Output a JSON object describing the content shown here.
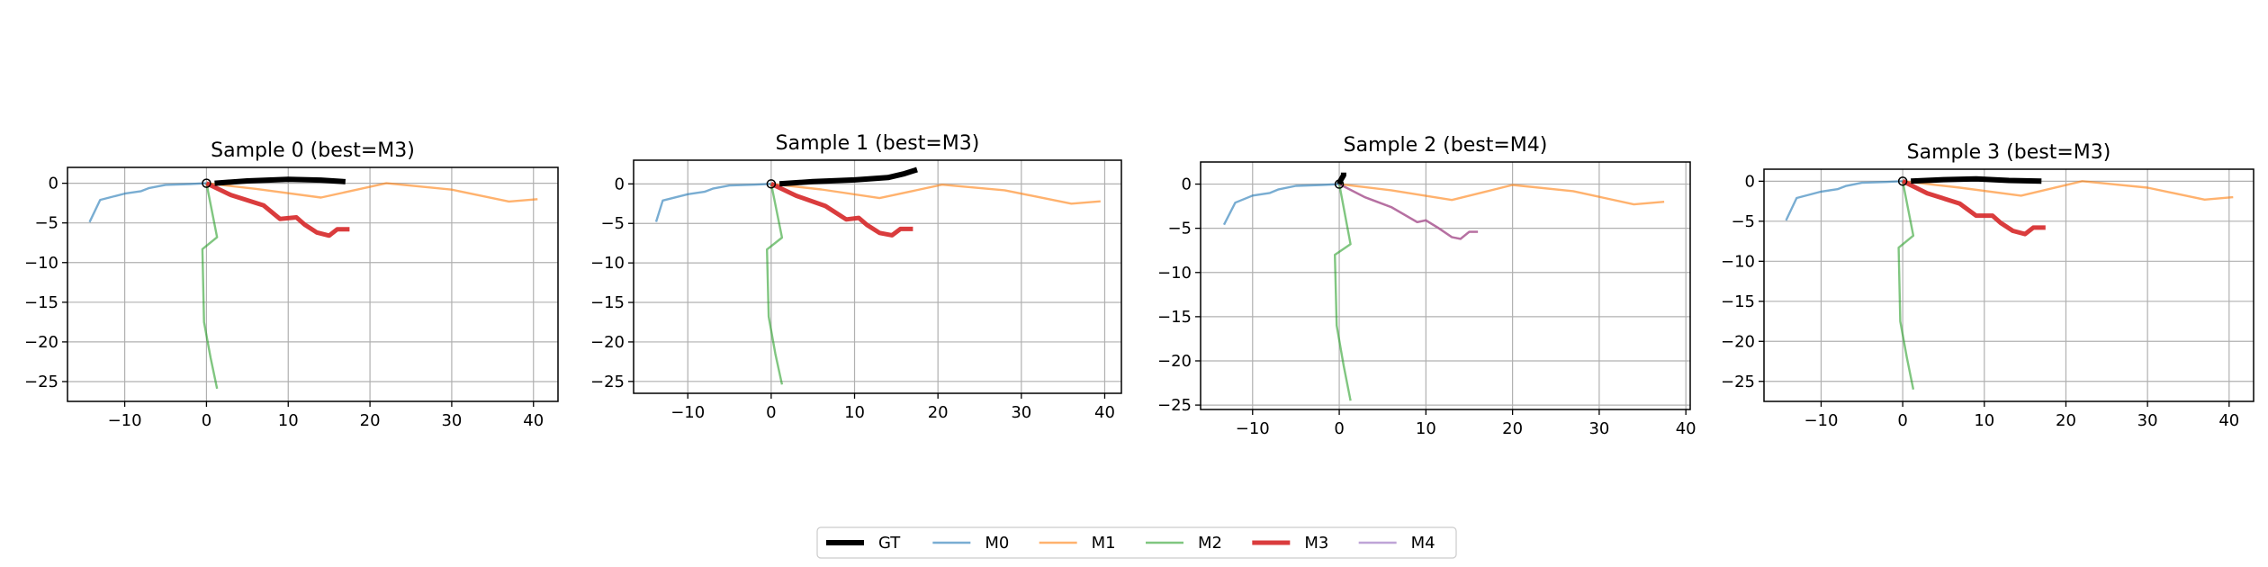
{
  "legend": {
    "entries": [
      {
        "name": "GT",
        "color": "#000000",
        "width": 6.0,
        "alpha": 1.0
      },
      {
        "name": "M0",
        "color": "#1f77b4",
        "width": 2.4,
        "alpha": 0.6
      },
      {
        "name": "M1",
        "color": "#ff7f0e",
        "width": 2.4,
        "alpha": 0.6
      },
      {
        "name": "M2",
        "color": "#2ca02c",
        "width": 2.4,
        "alpha": 0.6
      },
      {
        "name": "M3",
        "color": "#d62728",
        "width": 5.0,
        "alpha": 0.9
      },
      {
        "name": "M4",
        "color": "#9467bd",
        "width": 2.4,
        "alpha": 0.6
      }
    ]
  },
  "chart_data": [
    {
      "type": "line",
      "title": "Sample 0 (best=M3)",
      "xlabel": "",
      "ylabel": "",
      "xlim": [
        -17,
        43
      ],
      "ylim": [
        -27.5,
        2
      ],
      "xticks": [
        -10,
        0,
        10,
        20,
        30,
        40
      ],
      "yticks": [
        0,
        -5,
        -10,
        -15,
        -20,
        -25
      ],
      "grid": true,
      "best": "M3",
      "series": [
        {
          "name": "GT",
          "x": [
            1,
            5,
            10,
            14,
            17
          ],
          "y": [
            0,
            0.3,
            0.5,
            0.4,
            0.2
          ]
        },
        {
          "name": "M0",
          "x": [
            0,
            -2,
            -5,
            -7,
            -8,
            -10,
            -13,
            -14.3
          ],
          "y": [
            0,
            -0.1,
            -0.2,
            -0.6,
            -1.0,
            -1.3,
            -2.1,
            -4.9
          ]
        },
        {
          "name": "M1",
          "x": [
            0,
            6,
            14,
            22,
            30,
            37,
            40.5
          ],
          "y": [
            0,
            -0.7,
            -1.8,
            0,
            -0.8,
            -2.3,
            -2.0
          ]
        },
        {
          "name": "M2",
          "x": [
            0,
            1.3,
            -0.5,
            -0.3,
            0.5,
            1.3
          ],
          "y": [
            0,
            -6.8,
            -8.3,
            -17.5,
            -22,
            -25.9
          ]
        },
        {
          "name": "M3",
          "x": [
            0,
            3,
            7,
            9,
            11,
            12,
            13.5,
            15,
            16,
            17.5
          ],
          "y": [
            0,
            -1.5,
            -2.8,
            -4.5,
            -4.3,
            -5.2,
            -6.2,
            -6.6,
            -5.8,
            -5.8
          ]
        },
        {
          "name": "M4",
          "x": [
            0,
            3,
            7,
            9,
            11,
            12,
            13.5,
            15,
            16,
            17.5
          ],
          "y": [
            0,
            -1.5,
            -2.8,
            -4.5,
            -4.3,
            -5.2,
            -6.2,
            -6.6,
            -5.8,
            -5.8
          ]
        }
      ]
    },
    {
      "type": "line",
      "title": "Sample 1 (best=M3)",
      "xlabel": "",
      "ylabel": "",
      "xlim": [
        -16.5,
        42
      ],
      "ylim": [
        -26.5,
        3
      ],
      "xticks": [
        -10,
        0,
        10,
        20,
        30,
        40
      ],
      "yticks": [
        0,
        -5,
        -10,
        -15,
        -20,
        -25
      ],
      "grid": true,
      "best": "M3",
      "series": [
        {
          "name": "GT",
          "x": [
            1,
            5,
            10,
            14,
            16,
            17.5
          ],
          "y": [
            0,
            0.3,
            0.5,
            0.8,
            1.3,
            1.8
          ]
        },
        {
          "name": "M0",
          "x": [
            0,
            -2,
            -5,
            -7,
            -8,
            -10,
            -13,
            -13.8
          ],
          "y": [
            0,
            -0.1,
            -0.2,
            -0.6,
            -1.0,
            -1.3,
            -2.1,
            -4.8
          ]
        },
        {
          "name": "M1",
          "x": [
            0,
            6,
            13,
            20.5,
            28,
            36,
            39.5
          ],
          "y": [
            0,
            -0.7,
            -1.8,
            -0.1,
            -0.8,
            -2.5,
            -2.2
          ]
        },
        {
          "name": "M2",
          "x": [
            0,
            1.3,
            -0.5,
            -0.3,
            0.5,
            1.3
          ],
          "y": [
            0,
            -6.8,
            -8.3,
            -16.8,
            -21.5,
            -25.4
          ]
        },
        {
          "name": "M3",
          "x": [
            0,
            3,
            6.5,
            9,
            10.5,
            11.5,
            13,
            14.5,
            15.5,
            17
          ],
          "y": [
            0,
            -1.5,
            -2.8,
            -4.5,
            -4.3,
            -5.2,
            -6.2,
            -6.5,
            -5.7,
            -5.7
          ]
        },
        {
          "name": "M4",
          "x": [
            0,
            3,
            6.5,
            9,
            10.5,
            11.5,
            13,
            14.5,
            15.5,
            17
          ],
          "y": [
            0,
            -1.5,
            -2.8,
            -4.5,
            -4.3,
            -5.2,
            -6.2,
            -6.5,
            -5.7,
            -5.7
          ]
        }
      ]
    },
    {
      "type": "line",
      "title": "Sample 2 (best=M4)",
      "xlabel": "",
      "ylabel": "",
      "xlim": [
        -16,
        40.5
      ],
      "ylim": [
        -25.5,
        2.5
      ],
      "xticks": [
        -10,
        0,
        10,
        20,
        30,
        40
      ],
      "yticks": [
        0,
        -5,
        -10,
        -15,
        -20,
        -25
      ],
      "grid": true,
      "best": "M4",
      "series": [
        {
          "name": "GT",
          "x": [
            0,
            0.2,
            0.5,
            0.5
          ],
          "y": [
            0,
            0.5,
            1.0,
            1.3
          ]
        },
        {
          "name": "M0",
          "x": [
            0,
            -2,
            -5,
            -7,
            -8,
            -10,
            -12,
            -13.3
          ],
          "y": [
            0,
            -0.1,
            -0.2,
            -0.6,
            -1.0,
            -1.3,
            -2.1,
            -4.6
          ]
        },
        {
          "name": "M1",
          "x": [
            0,
            6,
            13,
            20,
            27,
            34,
            37.5
          ],
          "y": [
            0,
            -0.7,
            -1.8,
            -0.1,
            -0.8,
            -2.3,
            -2.0
          ]
        },
        {
          "name": "M2",
          "x": [
            0,
            1.3,
            -0.5,
            -0.3,
            0.5,
            1.3
          ],
          "y": [
            0,
            -6.8,
            -8.0,
            -16.0,
            -20.5,
            -24.5
          ]
        },
        {
          "name": "M3",
          "x": [
            0,
            3,
            6,
            9,
            10,
            11.5,
            13,
            14,
            15,
            16
          ],
          "y": [
            0,
            -1.5,
            -2.6,
            -4.3,
            -4.1,
            -5.0,
            -6.0,
            -6.2,
            -5.4,
            -5.4
          ]
        },
        {
          "name": "M4",
          "x": [
            0,
            3,
            6,
            9,
            10,
            11.5,
            13,
            14,
            15,
            16
          ],
          "y": [
            0,
            -1.5,
            -2.6,
            -4.3,
            -4.1,
            -5.0,
            -6.0,
            -6.2,
            -5.4,
            -5.4
          ]
        }
      ]
    },
    {
      "type": "line",
      "title": "Sample 3 (best=M3)",
      "xlabel": "",
      "ylabel": "",
      "xlim": [
        -17,
        43
      ],
      "ylim": [
        -27.5,
        1.5
      ],
      "xticks": [
        -10,
        0,
        10,
        20,
        30,
        40
      ],
      "yticks": [
        0,
        -5,
        -10,
        -15,
        -20,
        -25
      ],
      "grid": true,
      "best": "M3",
      "series": [
        {
          "name": "GT",
          "x": [
            1,
            5,
            9,
            13,
            17
          ],
          "y": [
            0,
            0.2,
            0.3,
            0.1,
            0
          ]
        },
        {
          "name": "M0",
          "x": [
            0,
            -2,
            -5,
            -7,
            -8,
            -10,
            -13,
            -14.3
          ],
          "y": [
            0,
            -0.1,
            -0.2,
            -0.6,
            -1.0,
            -1.3,
            -2.1,
            -4.9
          ]
        },
        {
          "name": "M1",
          "x": [
            0,
            7,
            14.5,
            22,
            30,
            37,
            40.5
          ],
          "y": [
            0,
            -0.8,
            -1.8,
            0,
            -0.8,
            -2.3,
            -2.0
          ]
        },
        {
          "name": "M2",
          "x": [
            0,
            1.3,
            -0.5,
            -0.3,
            0.5,
            1.3
          ],
          "y": [
            0,
            -6.8,
            -8.3,
            -17.5,
            -22,
            -26
          ]
        },
        {
          "name": "M3",
          "x": [
            0,
            3,
            7,
            9,
            11,
            12,
            13.5,
            15,
            16,
            17.5
          ],
          "y": [
            0,
            -1.5,
            -2.8,
            -4.3,
            -4.3,
            -5.2,
            -6.2,
            -6.6,
            -5.8,
            -5.8
          ]
        },
        {
          "name": "M4",
          "x": [
            0,
            3,
            7,
            9,
            11,
            12,
            13.5,
            15,
            16,
            17.5
          ],
          "y": [
            0,
            -1.5,
            -2.8,
            -4.3,
            -4.3,
            -5.2,
            -6.2,
            -6.6,
            -5.8,
            -5.8
          ]
        }
      ]
    }
  ]
}
